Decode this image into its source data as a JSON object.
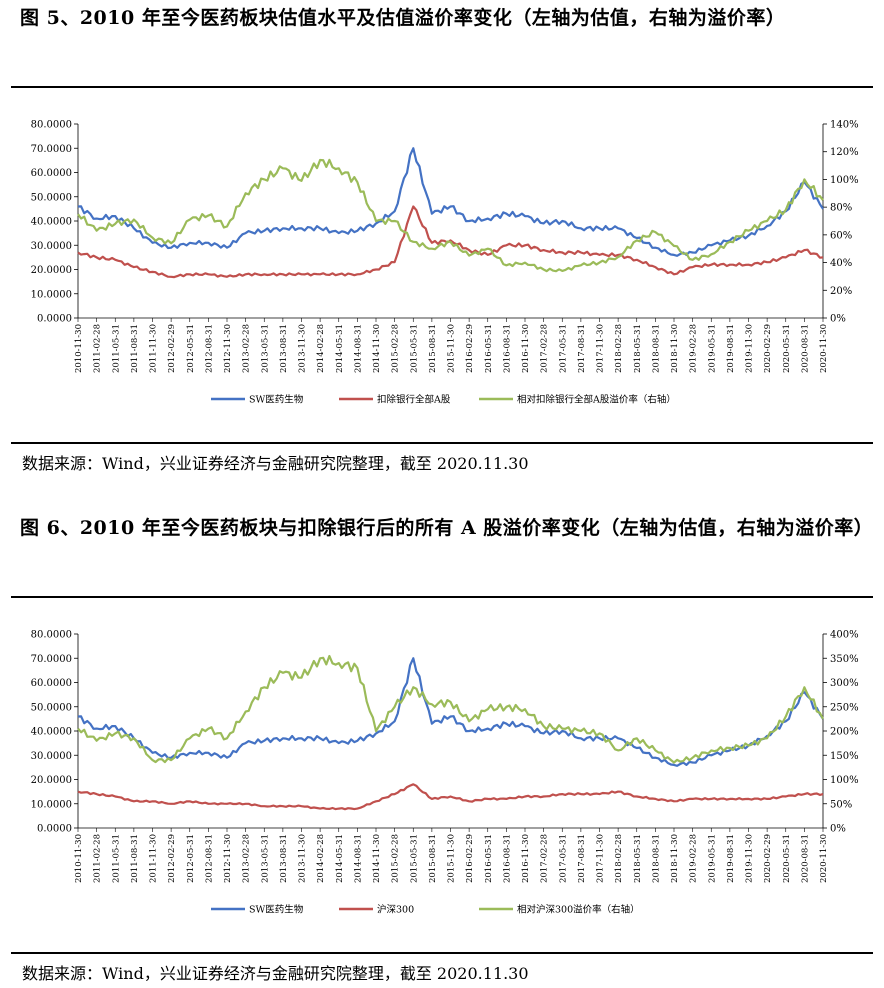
{
  "figure1": {
    "title": "图 5、2010 年至今医药板块估值水平及估值溢价率变化（左轴为估值，右轴为溢价率）",
    "source": "数据来源：Wind，兴业证券经济与金融研究院整理，截至 2020.11.30"
  },
  "figure2": {
    "title": "图 6、2010 年至今医药板块与扣除银行后的所有 A 股溢价率变化（左轴为估值，右轴为溢价率）",
    "source": "数据来源：Wind，兴业证券经济与金融研究院整理，截至 2020.11.30"
  },
  "chart_data": [
    {
      "type": "line",
      "title": "",
      "categories": [
        "2010-11-30",
        "2011-02-28",
        "2011-05-31",
        "2011-08-31",
        "2011-11-30",
        "2012-02-29",
        "2012-05-31",
        "2012-08-31",
        "2012-11-30",
        "2013-02-28",
        "2013-05-31",
        "2013-08-31",
        "2013-11-30",
        "2014-02-28",
        "2014-05-31",
        "2014-08-31",
        "2014-11-30",
        "2015-02-28",
        "2015-05-31",
        "2015-08-31",
        "2015-11-30",
        "2016-02-29",
        "2016-05-31",
        "2016-08-31",
        "2016-11-30",
        "2017-02-28",
        "2017-05-31",
        "2017-08-31",
        "2017-11-30",
        "2018-02-28",
        "2018-05-31",
        "2018-08-31",
        "2018-11-30",
        "2019-02-28",
        "2019-05-31",
        "2019-08-31",
        "2019-11-30",
        "2020-02-29",
        "2020-05-31",
        "2020-08-31",
        "2020-11-30"
      ],
      "left_axis": {
        "ylim": [
          0,
          80
        ],
        "ticks": [
          "0.0000",
          "10.0000",
          "20.0000",
          "30.0000",
          "40.0000",
          "50.0000",
          "60.0000",
          "70.0000",
          "80.0000"
        ]
      },
      "right_axis": {
        "ylim": [
          0,
          140
        ],
        "ticks": [
          "0%",
          "20%",
          "40%",
          "60%",
          "80%",
          "100%",
          "120%",
          "140%"
        ]
      },
      "grid": false,
      "legend_position": "bottom",
      "series": [
        {
          "name": "SW医药生物",
          "axis": "left",
          "color": "#4472C4",
          "values": [
            46,
            41,
            42,
            37,
            31,
            29,
            31,
            31,
            29,
            35,
            36,
            37,
            37,
            37,
            35,
            36,
            39,
            44,
            70,
            43,
            46,
            40,
            41,
            43,
            42,
            39,
            40,
            37,
            37,
            37,
            33,
            29,
            26,
            27,
            30,
            32,
            34,
            38,
            44,
            56,
            45
          ]
        },
        {
          "name": "扣除银行全部A股",
          "axis": "left",
          "color": "#C0504D",
          "values": [
            27,
            25,
            24,
            21,
            19,
            17,
            18,
            18,
            17,
            18,
            18,
            18,
            18,
            18,
            18,
            18,
            20,
            23,
            46,
            31,
            32,
            28,
            26,
            30,
            30,
            28,
            27,
            27,
            26,
            26,
            24,
            21,
            18,
            21,
            22,
            22,
            22,
            23,
            25,
            28,
            25
          ]
        },
        {
          "name": "相对扣除银行全部A股溢价率（右轴）",
          "axis": "right",
          "color": "#9BBB59",
          "values": [
            75,
            63,
            68,
            71,
            58,
            54,
            71,
            74,
            66,
            90,
            100,
            108,
            99,
            114,
            108,
            98,
            70,
            70,
            55,
            50,
            55,
            45,
            50,
            38,
            40,
            35,
            34,
            38,
            40,
            44,
            56,
            62,
            52,
            42,
            46,
            55,
            63,
            70,
            78,
            100,
            85
          ]
        }
      ]
    },
    {
      "type": "line",
      "title": "",
      "categories": [
        "2010-11-30",
        "2011-02-28",
        "2011-05-31",
        "2011-08-31",
        "2011-11-30",
        "2012-02-29",
        "2012-05-31",
        "2012-08-31",
        "2012-11-30",
        "2013-02-28",
        "2013-05-31",
        "2013-08-31",
        "2013-11-30",
        "2014-02-28",
        "2014-05-31",
        "2014-08-31",
        "2014-11-30",
        "2015-02-28",
        "2015-05-31",
        "2015-08-31",
        "2015-11-30",
        "2016-02-29",
        "2016-05-31",
        "2016-08-31",
        "2016-11-30",
        "2017-02-28",
        "2017-05-31",
        "2017-08-31",
        "2017-11-30",
        "2018-02-28",
        "2018-05-31",
        "2018-08-31",
        "2018-11-30",
        "2019-02-28",
        "2019-05-31",
        "2019-08-31",
        "2019-11-30",
        "2020-02-29",
        "2020-05-31",
        "2020-08-31",
        "2020-11-30"
      ],
      "left_axis": {
        "ylim": [
          0,
          80
        ],
        "ticks": [
          "0.0000",
          "10.0000",
          "20.0000",
          "30.0000",
          "40.0000",
          "50.0000",
          "60.0000",
          "70.0000",
          "80.0000"
        ]
      },
      "right_axis": {
        "ylim": [
          0,
          400
        ],
        "ticks": [
          "0%",
          "50%",
          "100%",
          "150%",
          "200%",
          "250%",
          "300%",
          "350%",
          "400%"
        ]
      },
      "grid": false,
      "legend_position": "bottom",
      "series": [
        {
          "name": "SW医药生物",
          "axis": "left",
          "color": "#4472C4",
          "values": [
            46,
            41,
            42,
            37,
            31,
            29,
            31,
            31,
            29,
            35,
            36,
            37,
            37,
            37,
            35,
            36,
            39,
            44,
            70,
            43,
            46,
            40,
            41,
            43,
            42,
            39,
            40,
            37,
            37,
            37,
            33,
            29,
            26,
            27,
            30,
            32,
            34,
            38,
            44,
            56,
            45
          ]
        },
        {
          "name": "沪深300",
          "axis": "left",
          "color": "#C0504D",
          "values": [
            15,
            14,
            13,
            11,
            11,
            10,
            11,
            10,
            10,
            10,
            9,
            9,
            9,
            8,
            8,
            8,
            11,
            14,
            18,
            12,
            13,
            11,
            12,
            12,
            13,
            13,
            14,
            14,
            14,
            15,
            13,
            12,
            11,
            12,
            12,
            12,
            12,
            12,
            13,
            14,
            14
          ]
        },
        {
          "name": "相对沪深300溢价率（右轴）",
          "axis": "right",
          "color": "#9BBB59",
          "values": [
            205,
            180,
            195,
            185,
            140,
            140,
            185,
            205,
            185,
            240,
            290,
            320,
            310,
            350,
            340,
            330,
            200,
            250,
            290,
            255,
            260,
            220,
            245,
            250,
            245,
            210,
            205,
            200,
            195,
            160,
            185,
            160,
            135,
            145,
            160,
            165,
            170,
            185,
            230,
            290,
            225
          ]
        }
      ]
    }
  ]
}
